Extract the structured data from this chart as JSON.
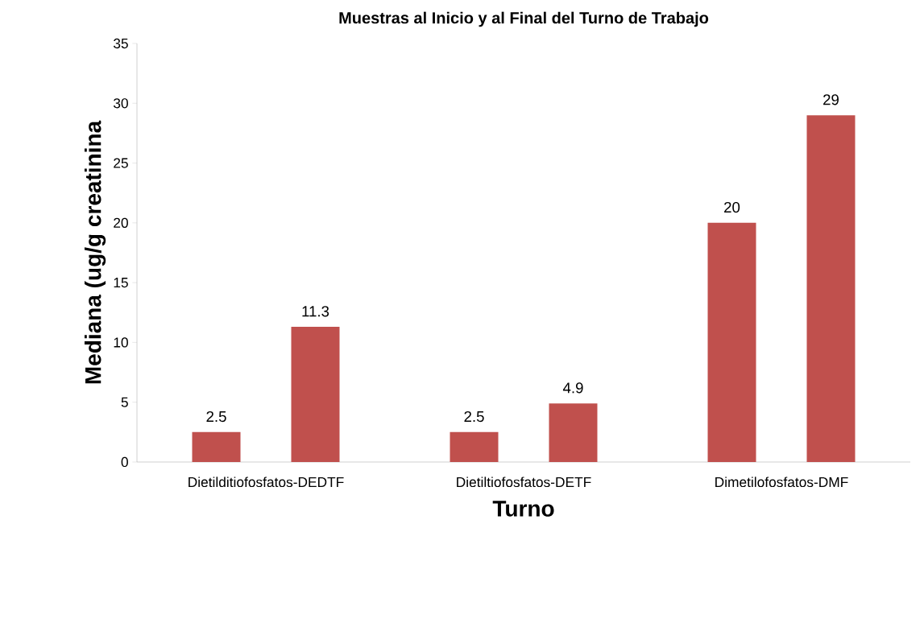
{
  "chart_data": {
    "type": "bar",
    "title": "Muestras al Inicio y al Final del Turno de Trabajo",
    "xlabel": "Turno",
    "ylabel": "Mediana (ug/g creatinina",
    "categories": [
      "Dietilditiofosfatos-DEDTF",
      "Dietiltiofosfatos-DETF",
      "Dimetilofosfatos-DMF"
    ],
    "series": [
      {
        "color": "#c0504d",
        "values": [
          2.5,
          2.5,
          20
        ]
      },
      {
        "color": "#c0504d",
        "values": [
          11.3,
          4.9,
          29
        ]
      }
    ],
    "ylim": [
      0,
      35
    ],
    "yticks": [
      0,
      5,
      10,
      15,
      20,
      25,
      30,
      35
    ],
    "data_labels": true,
    "grid": false
  }
}
